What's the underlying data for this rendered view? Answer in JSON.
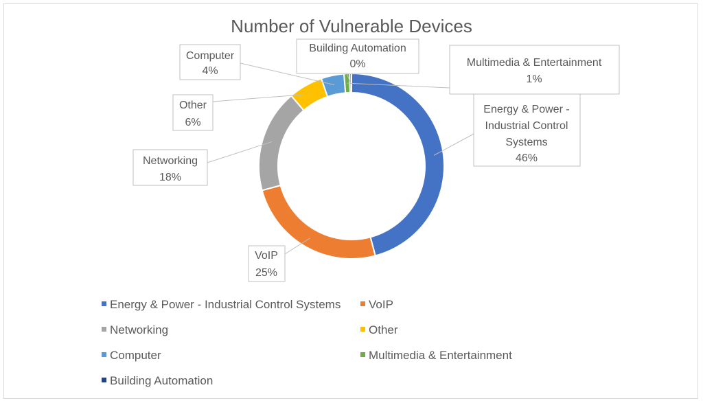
{
  "chart_data": {
    "type": "pie",
    "variant": "doughnut",
    "title": "Number of Vulnerable Devices",
    "categories": [
      "Energy & Power - Industrial Control Systems",
      "VoIP",
      "Networking",
      "Other",
      "Computer",
      "Multimedia & Entertainment",
      "Building Automation"
    ],
    "label_lines": [
      [
        "Energy & Power -",
        "Industrial Control",
        "Systems"
      ],
      [
        "VoIP"
      ],
      [
        "Networking"
      ],
      [
        "Other"
      ],
      [
        "Computer"
      ],
      [
        "Multimedia & Entertainment"
      ],
      [
        "Building Automation"
      ]
    ],
    "values": [
      46,
      25,
      18,
      6,
      4,
      1,
      0.3
    ],
    "percent_labels": [
      "46%",
      "25%",
      "18%",
      "6%",
      "4%",
      "1%",
      "0%"
    ],
    "colors": [
      "#4472c4",
      "#ed7d31",
      "#a5a5a5",
      "#ffc000",
      "#5b9bd5",
      "#70ad47",
      "#264478"
    ],
    "legend_placement": "bottom"
  }
}
